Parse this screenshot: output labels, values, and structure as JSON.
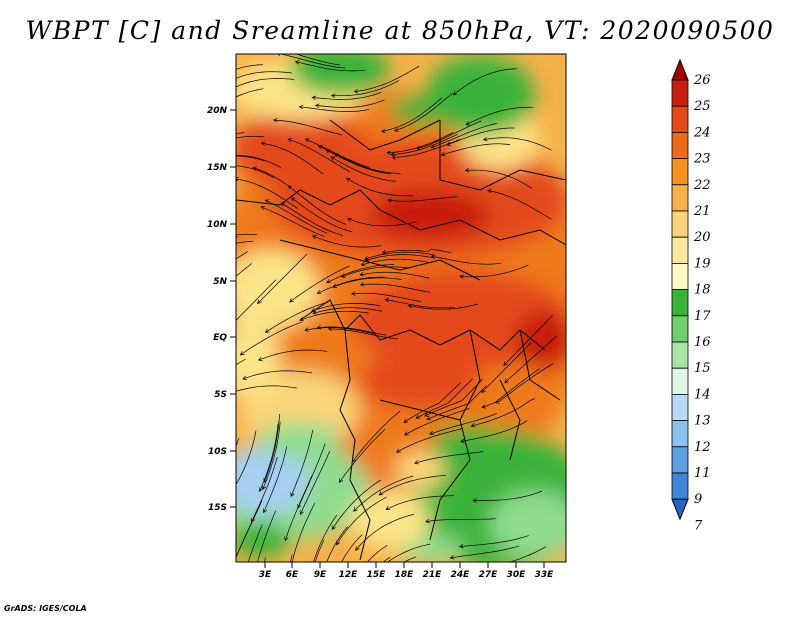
{
  "title": "WBPT [C] and Sreamline at 850hPa, VT: 2020090500",
  "credit": "GrADS: IGES/COLA",
  "map": {
    "lon_ticks": [
      "3E",
      "6E",
      "9E",
      "12E",
      "15E",
      "18E",
      "21E",
      "24E",
      "27E",
      "30E",
      "33E"
    ],
    "lat_ticks": [
      "20N",
      "15N",
      "10N",
      "5N",
      "EQ",
      "5S",
      "10S",
      "15S"
    ],
    "colors": {
      "green_dark": "#3bb33b",
      "green_light": "#8fdc8f",
      "yellow": "#fce488",
      "orange_light": "#f6b24a",
      "orange": "#ef7a1e",
      "red_orange": "#e4491a",
      "red": "#c81e10",
      "blue_light": "#a6cff2",
      "blue": "#6aa6e8"
    }
  },
  "colorbar": {
    "labels": [
      "26",
      "25",
      "24",
      "23",
      "22",
      "21",
      "20",
      "19",
      "18",
      "17",
      "16",
      "15",
      "14",
      "13",
      "12",
      "11",
      "9",
      "7"
    ],
    "colors": [
      "#a50000",
      "#c81e10",
      "#e4491a",
      "#ef6a18",
      "#f4901e",
      "#f6b24a",
      "#fad47a",
      "#fce8a0",
      "#fff9c8",
      "#3bb33b",
      "#6fcf6f",
      "#a8e6a8",
      "#e0f6e8",
      "#b8daf4",
      "#8cc0ee",
      "#5ea2e4",
      "#3f85d8",
      "#2a63c8"
    ]
  }
}
